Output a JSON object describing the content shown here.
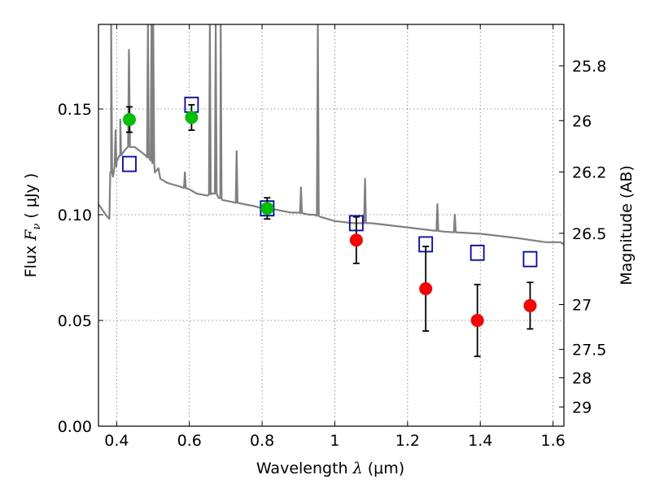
{
  "chart_data": {
    "type": "scatter",
    "xlabel_prefix": "Wavelength  ",
    "xlabel_symbol": "λ",
    "xlabel_unit": " (μm)",
    "ylabel_prefix": "Flux  ",
    "ylabel_symbol": "F",
    "ylabel_subscript": "ν",
    "ylabel_unit": "  ( μJy )",
    "y2label": "Magnitude (AB)",
    "xlim": [
      0.35,
      1.63
    ],
    "ylim": [
      0.0,
      0.19
    ],
    "grid": true,
    "xticks": [
      0.4,
      0.6,
      0.8,
      1.0,
      1.2,
      1.4,
      1.6
    ],
    "xtick_labels": [
      "0.4",
      "0.6",
      "0.8",
      "1",
      "1.2",
      "1.4",
      "1.6"
    ],
    "yticks": [
      0.0,
      0.05,
      0.1,
      0.15
    ],
    "ytick_labels": [
      "0.00",
      "0.05",
      "0.10",
      "0.15"
    ],
    "y2ticks": [
      {
        "label": "25.8",
        "flux": 0.1704
      },
      {
        "label": "26",
        "flux": 0.1445
      },
      {
        "label": "26.2",
        "flux": 0.1202
      },
      {
        "label": "26.5",
        "flux": 0.0912
      },
      {
        "label": "27",
        "flux": 0.0575
      },
      {
        "label": "27.5",
        "flux": 0.0363
      },
      {
        "label": "28",
        "flux": 0.0229
      },
      {
        "label": "29",
        "flux": 0.0091
      }
    ],
    "colors": {
      "model": "#808080",
      "green": "#00c000",
      "red": "#ff0000",
      "blue": "#0000cc",
      "error": "#000000",
      "grid": "#777777"
    },
    "series": [
      {
        "kind": "model_spectrum",
        "x": [
          0.35,
          0.37,
          0.38,
          0.385,
          0.39,
          0.4,
          0.41,
          0.42,
          0.43,
          0.45,
          0.48,
          0.5,
          0.505,
          0.515,
          0.52,
          0.54,
          0.58,
          0.6,
          0.62,
          0.65,
          0.66,
          0.675,
          0.68,
          0.685,
          0.69,
          0.72,
          0.75,
          0.78,
          0.8,
          0.82,
          0.85,
          0.88,
          0.9,
          0.93,
          0.945,
          0.96,
          1.0,
          1.05,
          1.1,
          1.2,
          1.3,
          1.4,
          1.5,
          1.58,
          1.62,
          1.63
        ],
        "y": [
          0.105,
          0.1,
          0.098,
          0.12,
          0.118,
          0.125,
          0.128,
          0.13,
          0.132,
          0.132,
          0.128,
          0.125,
          0.12,
          0.122,
          0.117,
          0.115,
          0.113,
          0.112,
          0.11,
          0.109,
          0.11,
          0.11,
          0.108,
          0.108,
          0.107,
          0.106,
          0.105,
          0.104,
          0.103,
          0.103,
          0.102,
          0.101,
          0.101,
          0.1,
          0.1,
          0.099,
          0.097,
          0.096,
          0.096,
          0.094,
          0.092,
          0.091,
          0.089,
          0.087,
          0.087,
          0.086
        ],
        "lines": [
          {
            "x": 0.385,
            "peak": 0.19
          },
          {
            "x": 0.397,
            "peak": 0.14
          },
          {
            "x": 0.41,
            "peak": 0.145
          },
          {
            "x": 0.434,
            "peak": 0.178
          },
          {
            "x": 0.486,
            "peak": 0.19
          },
          {
            "x": 0.496,
            "peak": 0.19
          },
          {
            "x": 0.5007,
            "peak": 0.19
          },
          {
            "x": 0.5876,
            "peak": 0.12
          },
          {
            "x": 0.6563,
            "peak": 0.19
          },
          {
            "x": 0.6725,
            "peak": 0.19
          },
          {
            "x": 0.686,
            "peak": 0.19
          },
          {
            "x": 0.73,
            "peak": 0.13
          },
          {
            "x": 0.9069,
            "peak": 0.113
          },
          {
            "x": 0.9532,
            "peak": 0.19
          },
          {
            "x": 1.083,
            "peak": 0.117
          },
          {
            "x": 1.282,
            "peak": 0.105
          },
          {
            "x": 1.33,
            "peak": 0.1
          }
        ]
      },
      {
        "kind": "model_magnitudes",
        "marker": "open_square",
        "x": [
          0.435,
          0.606,
          0.814,
          1.059,
          1.25,
          1.392,
          1.537
        ],
        "y": [
          0.124,
          0.152,
          0.103,
          0.096,
          0.086,
          0.082,
          0.079
        ]
      },
      {
        "kind": "observed_optical",
        "marker": "filled_circle",
        "color": "green",
        "x": [
          0.435,
          0.606,
          0.814
        ],
        "y": [
          0.145,
          0.146,
          0.103
        ],
        "yerr": [
          0.006,
          0.006,
          0.005
        ]
      },
      {
        "kind": "observed_nir",
        "marker": "filled_circle",
        "color": "red",
        "x": [
          1.059,
          1.25,
          1.392,
          1.537
        ],
        "y": [
          0.088,
          0.065,
          0.05,
          0.057
        ],
        "yerr": [
          0.011,
          0.02,
          0.017,
          0.011
        ]
      }
    ]
  }
}
